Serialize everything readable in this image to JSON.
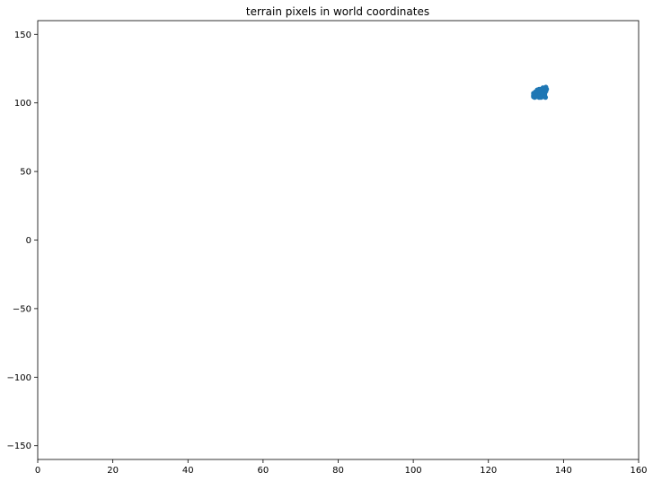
{
  "chart_data": {
    "type": "scatter",
    "title": "terrain pixels in world coordinates",
    "xlabel": "",
    "ylabel": "",
    "xlim": [
      0,
      160
    ],
    "ylim": [
      -160,
      160
    ],
    "x_ticks": [
      0,
      20,
      40,
      60,
      80,
      100,
      120,
      140,
      160
    ],
    "y_ticks": [
      -150,
      -100,
      -50,
      0,
      50,
      100,
      150
    ],
    "x_tick_labels": [
      "0",
      "20",
      "40",
      "60",
      "80",
      "100",
      "120",
      "140",
      "160"
    ],
    "y_tick_labels": [
      "−150",
      "−100",
      "−50",
      "0",
      "50",
      "100",
      "150"
    ],
    "grid": false,
    "legend": "none",
    "color": "#1f77b4",
    "series": [
      {
        "x": [
          132.0,
          132.0,
          132.0,
          132.2,
          132.3,
          132.5,
          132.7,
          132.8,
          133.0,
          133.0,
          133.2,
          133.3,
          133.5,
          133.5,
          133.7,
          133.8,
          134.0,
          134.0,
          134.2,
          134.3,
          134.5,
          134.5,
          134.7,
          134.8,
          135.0,
          135.0,
          135.2,
          135.2,
          135.3,
          135.5,
          133.0,
          133.5,
          134.0,
          132.5,
          134.5,
          135.0,
          132.8,
          133.8,
          134.3,
          135.3
        ],
        "y": [
          104.5,
          105.5,
          107.0,
          106.0,
          104.0,
          105.0,
          106.5,
          107.5,
          104.5,
          108.0,
          105.5,
          106.5,
          108.5,
          104.0,
          107.0,
          109.0,
          105.0,
          110.0,
          106.0,
          108.0,
          109.5,
          104.5,
          110.5,
          107.5,
          106.5,
          109.0,
          111.0,
          104.0,
          108.5,
          110.0,
          109.5,
          110.0,
          104.0,
          108.0,
          111.0,
          105.5,
          105.0,
          106.0,
          107.0,
          111.5
        ]
      }
    ]
  }
}
